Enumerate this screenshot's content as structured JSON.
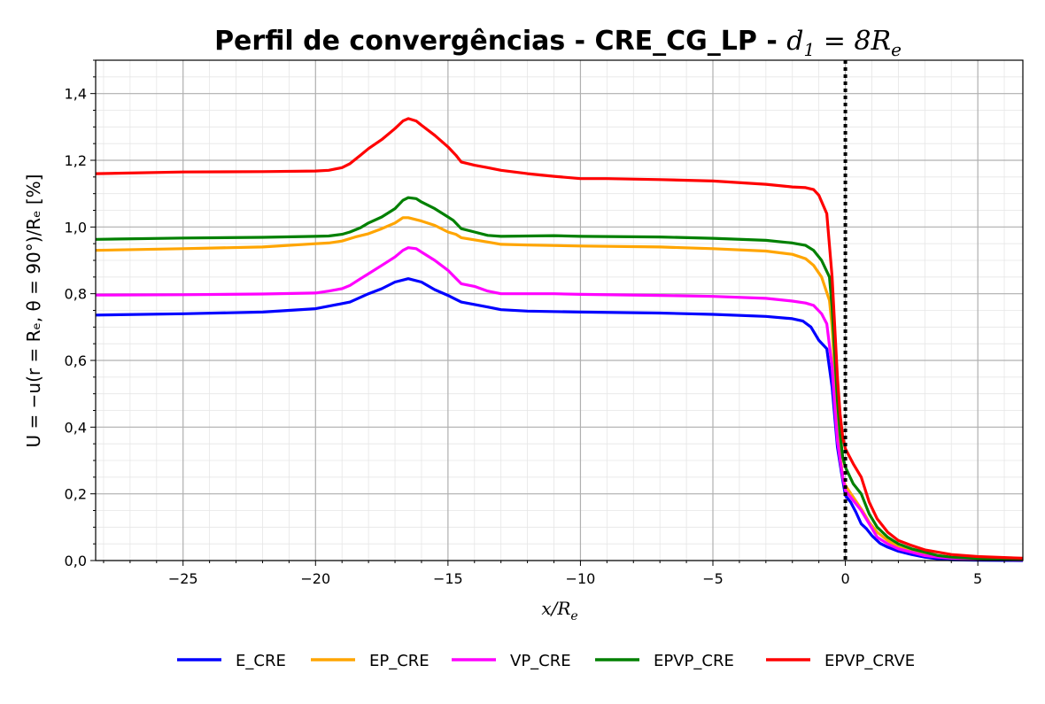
{
  "chart_data": {
    "type": "line",
    "title": {
      "bold": "Perfil de convergências - CRE_CG_LP - ",
      "math_var": "d",
      "math_sub": "1",
      "math_rest": " = 8R",
      "math_rest_sub": "e"
    },
    "xlabel": {
      "var": "x/R",
      "sub": "e"
    },
    "ylabel": "U = −u(r = Rₑ, θ = 90°)/Rₑ [%]",
    "xlim": [
      -28.3,
      6.7
    ],
    "ylim": [
      0.0,
      1.5
    ],
    "x_ticks": [
      -25,
      -20,
      -15,
      -10,
      -5,
      0,
      5
    ],
    "x_tick_labels": [
      "−25",
      "−20",
      "−15",
      "−10",
      "−5",
      "0",
      "5"
    ],
    "y_ticks": [
      0.0,
      0.2,
      0.4,
      0.6,
      0.8,
      1.0,
      1.2,
      1.4
    ],
    "y_tick_labels": [
      "0,0",
      "0,2",
      "0,4",
      "0,6",
      "0,8",
      "1,0",
      "1,2",
      "1,4"
    ],
    "grid": true,
    "minor_grid": true,
    "vline": {
      "x": 0,
      "style": "dotted",
      "color": "#000000"
    },
    "legend_position": "below",
    "series": [
      {
        "name": "E_CRE",
        "color": "#0000ff",
        "points": [
          [
            -28.3,
            0.736
          ],
          [
            -25,
            0.74
          ],
          [
            -22,
            0.745
          ],
          [
            -20,
            0.755
          ],
          [
            -18.7,
            0.775
          ],
          [
            -18,
            0.8
          ],
          [
            -17.5,
            0.815
          ],
          [
            -17,
            0.835
          ],
          [
            -16.5,
            0.845
          ],
          [
            -16,
            0.835
          ],
          [
            -15.5,
            0.812
          ],
          [
            -15,
            0.795
          ],
          [
            -14.5,
            0.775
          ],
          [
            -13.5,
            0.76
          ],
          [
            -13,
            0.752
          ],
          [
            -12,
            0.748
          ],
          [
            -10,
            0.745
          ],
          [
            -7,
            0.742
          ],
          [
            -5,
            0.738
          ],
          [
            -3,
            0.732
          ],
          [
            -2,
            0.725
          ],
          [
            -1.6,
            0.718
          ],
          [
            -1.3,
            0.7
          ],
          [
            -1,
            0.66
          ],
          [
            -0.7,
            0.635
          ],
          [
            -0.5,
            0.52
          ],
          [
            -0.4,
            0.43
          ],
          [
            -0.3,
            0.34
          ],
          [
            -0.15,
            0.265
          ],
          [
            0,
            0.195
          ],
          [
            0.2,
            0.175
          ],
          [
            0.4,
            0.145
          ],
          [
            0.6,
            0.11
          ],
          [
            0.8,
            0.095
          ],
          [
            1.0,
            0.075
          ],
          [
            1.3,
            0.052
          ],
          [
            1.6,
            0.04
          ],
          [
            2.0,
            0.028
          ],
          [
            2.5,
            0.018
          ],
          [
            3.0,
            0.01
          ],
          [
            3.5,
            0.005
          ],
          [
            4.0,
            0.002
          ],
          [
            5.0,
            0.001
          ],
          [
            6.7,
            0.0
          ]
        ]
      },
      {
        "name": "EP_CRE",
        "color": "#ffa500",
        "points": [
          [
            -28.3,
            0.93
          ],
          [
            -25,
            0.935
          ],
          [
            -22,
            0.94
          ],
          [
            -20,
            0.95
          ],
          [
            -19.5,
            0.952
          ],
          [
            -19,
            0.958
          ],
          [
            -18.5,
            0.97
          ],
          [
            -18,
            0.98
          ],
          [
            -17.5,
            0.995
          ],
          [
            -17,
            1.012
          ],
          [
            -16.7,
            1.028
          ],
          [
            -16.5,
            1.028
          ],
          [
            -16,
            1.018
          ],
          [
            -15.5,
            1.005
          ],
          [
            -15,
            0.985
          ],
          [
            -14.7,
            0.978
          ],
          [
            -14.5,
            0.968
          ],
          [
            -13.5,
            0.955
          ],
          [
            -13,
            0.948
          ],
          [
            -12,
            0.946
          ],
          [
            -10,
            0.943
          ],
          [
            -7,
            0.94
          ],
          [
            -5,
            0.935
          ],
          [
            -3,
            0.928
          ],
          [
            -2,
            0.918
          ],
          [
            -1.5,
            0.905
          ],
          [
            -1.2,
            0.885
          ],
          [
            -0.9,
            0.85
          ],
          [
            -0.6,
            0.78
          ],
          [
            -0.5,
            0.7
          ],
          [
            -0.4,
            0.56
          ],
          [
            -0.3,
            0.42
          ],
          [
            -0.2,
            0.32
          ],
          [
            -0.1,
            0.25
          ],
          [
            0,
            0.225
          ],
          [
            0.3,
            0.19
          ],
          [
            0.6,
            0.155
          ],
          [
            0.9,
            0.115
          ],
          [
            1.2,
            0.085
          ],
          [
            1.6,
            0.06
          ],
          [
            2.0,
            0.04
          ],
          [
            2.5,
            0.028
          ],
          [
            3.0,
            0.018
          ],
          [
            3.5,
            0.012
          ],
          [
            4.0,
            0.008
          ],
          [
            5.0,
            0.004
          ],
          [
            6.7,
            0.002
          ]
        ]
      },
      {
        "name": "VP_CRE",
        "color": "#ff00ff",
        "points": [
          [
            -28.3,
            0.796
          ],
          [
            -25,
            0.797
          ],
          [
            -22,
            0.799
          ],
          [
            -20,
            0.802
          ],
          [
            -19.5,
            0.808
          ],
          [
            -19,
            0.815
          ],
          [
            -18.7,
            0.825
          ],
          [
            -18.3,
            0.845
          ],
          [
            -18,
            0.86
          ],
          [
            -17.5,
            0.885
          ],
          [
            -17,
            0.91
          ],
          [
            -16.7,
            0.93
          ],
          [
            -16.5,
            0.938
          ],
          [
            -16.2,
            0.935
          ],
          [
            -16,
            0.925
          ],
          [
            -15.5,
            0.9
          ],
          [
            -15,
            0.87
          ],
          [
            -14.5,
            0.83
          ],
          [
            -14,
            0.822
          ],
          [
            -13.5,
            0.808
          ],
          [
            -13,
            0.8
          ],
          [
            -11,
            0.8
          ],
          [
            -10,
            0.798
          ],
          [
            -7,
            0.795
          ],
          [
            -5,
            0.792
          ],
          [
            -3,
            0.786
          ],
          [
            -2,
            0.778
          ],
          [
            -1.5,
            0.772
          ],
          [
            -1.2,
            0.765
          ],
          [
            -0.9,
            0.74
          ],
          [
            -0.7,
            0.71
          ],
          [
            -0.5,
            0.58
          ],
          [
            -0.4,
            0.46
          ],
          [
            -0.3,
            0.36
          ],
          [
            -0.15,
            0.275
          ],
          [
            0,
            0.21
          ],
          [
            0.3,
            0.18
          ],
          [
            0.6,
            0.15
          ],
          [
            0.9,
            0.11
          ],
          [
            1.2,
            0.07
          ],
          [
            1.6,
            0.05
          ],
          [
            2.0,
            0.035
          ],
          [
            2.5,
            0.025
          ],
          [
            3.0,
            0.015
          ],
          [
            3.5,
            0.01
          ],
          [
            4.0,
            0.007
          ],
          [
            5.0,
            0.004
          ],
          [
            6.7,
            0.002
          ]
        ]
      },
      {
        "name": "EPVP_CRE",
        "color": "#008000",
        "points": [
          [
            -28.3,
            0.963
          ],
          [
            -25,
            0.967
          ],
          [
            -22,
            0.969
          ],
          [
            -20,
            0.972
          ],
          [
            -19.5,
            0.973
          ],
          [
            -19,
            0.978
          ],
          [
            -18.7,
            0.985
          ],
          [
            -18.3,
            0.998
          ],
          [
            -18,
            1.012
          ],
          [
            -17.5,
            1.03
          ],
          [
            -17,
            1.055
          ],
          [
            -16.7,
            1.08
          ],
          [
            -16.5,
            1.088
          ],
          [
            -16.2,
            1.085
          ],
          [
            -16,
            1.075
          ],
          [
            -15.5,
            1.055
          ],
          [
            -15,
            1.03
          ],
          [
            -14.8,
            1.02
          ],
          [
            -14.5,
            0.995
          ],
          [
            -14,
            0.985
          ],
          [
            -13.5,
            0.975
          ],
          [
            -13,
            0.972
          ],
          [
            -11,
            0.974
          ],
          [
            -10,
            0.972
          ],
          [
            -7,
            0.97
          ],
          [
            -5,
            0.966
          ],
          [
            -3,
            0.96
          ],
          [
            -2,
            0.952
          ],
          [
            -1.5,
            0.945
          ],
          [
            -1.2,
            0.93
          ],
          [
            -0.9,
            0.9
          ],
          [
            -0.6,
            0.85
          ],
          [
            -0.5,
            0.76
          ],
          [
            -0.4,
            0.62
          ],
          [
            -0.3,
            0.48
          ],
          [
            -0.2,
            0.38
          ],
          [
            -0.1,
            0.31
          ],
          [
            0,
            0.28
          ],
          [
            0.3,
            0.23
          ],
          [
            0.6,
            0.2
          ],
          [
            0.9,
            0.14
          ],
          [
            1.2,
            0.1
          ],
          [
            1.6,
            0.07
          ],
          [
            2.0,
            0.05
          ],
          [
            2.5,
            0.035
          ],
          [
            3.0,
            0.025
          ],
          [
            3.5,
            0.015
          ],
          [
            4.0,
            0.01
          ],
          [
            5.0,
            0.006
          ],
          [
            6.7,
            0.003
          ]
        ]
      },
      {
        "name": "EPVP_CRVE",
        "color": "#ff0000",
        "points": [
          [
            -28.3,
            1.16
          ],
          [
            -25,
            1.165
          ],
          [
            -22,
            1.166
          ],
          [
            -20,
            1.168
          ],
          [
            -19.5,
            1.17
          ],
          [
            -19,
            1.178
          ],
          [
            -18.7,
            1.19
          ],
          [
            -18.3,
            1.215
          ],
          [
            -18,
            1.235
          ],
          [
            -17.5,
            1.262
          ],
          [
            -17,
            1.295
          ],
          [
            -16.7,
            1.318
          ],
          [
            -16.5,
            1.325
          ],
          [
            -16.2,
            1.318
          ],
          [
            -16,
            1.305
          ],
          [
            -15.5,
            1.275
          ],
          [
            -15,
            1.24
          ],
          [
            -14.7,
            1.215
          ],
          [
            -14.5,
            1.195
          ],
          [
            -14,
            1.185
          ],
          [
            -13.5,
            1.178
          ],
          [
            -13,
            1.17
          ],
          [
            -12,
            1.16
          ],
          [
            -11,
            1.152
          ],
          [
            -10,
            1.145
          ],
          [
            -9,
            1.145
          ],
          [
            -7,
            1.142
          ],
          [
            -5,
            1.138
          ],
          [
            -3,
            1.128
          ],
          [
            -2,
            1.12
          ],
          [
            -1.5,
            1.118
          ],
          [
            -1.2,
            1.112
          ],
          [
            -1,
            1.095
          ],
          [
            -0.7,
            1.04
          ],
          [
            -0.5,
            0.85
          ],
          [
            -0.4,
            0.7
          ],
          [
            -0.3,
            0.55
          ],
          [
            -0.2,
            0.44
          ],
          [
            -0.1,
            0.37
          ],
          [
            0,
            0.335
          ],
          [
            0.3,
            0.29
          ],
          [
            0.6,
            0.25
          ],
          [
            0.9,
            0.175
          ],
          [
            1.2,
            0.125
          ],
          [
            1.6,
            0.085
          ],
          [
            2.0,
            0.06
          ],
          [
            2.5,
            0.045
          ],
          [
            3.0,
            0.032
          ],
          [
            3.5,
            0.025
          ],
          [
            4.0,
            0.018
          ],
          [
            5.0,
            0.012
          ],
          [
            6.7,
            0.007
          ]
        ]
      }
    ]
  }
}
